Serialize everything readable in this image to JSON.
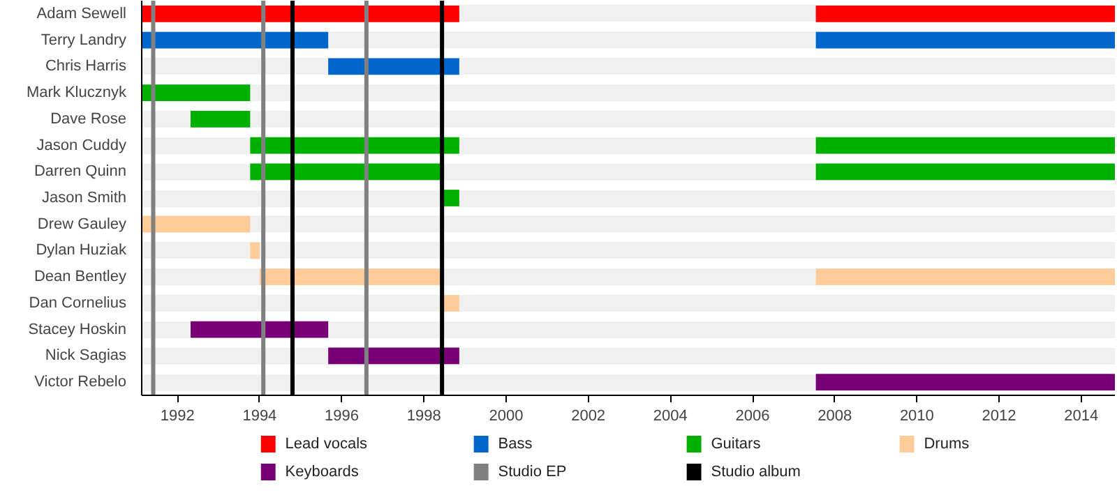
{
  "chart_data": {
    "type": "bar",
    "orientation": "horizontal",
    "grid": "y",
    "legend": "bottom",
    "categories": [
      "Adam Sewell",
      "Terry Landry",
      "Chris Harris",
      "Mark Klucznyk",
      "Dave Rose",
      "Jason Cuddy",
      "Darren Quinn",
      "Jason Smith",
      "Drew Gauley",
      "Dylan Huziak",
      "Dean Bentley",
      "Dan Cornelius",
      "Stacey Hoskin",
      "Nick Sagias",
      "Victor Rebelo"
    ],
    "xlim": [
      1991.13,
      2014.82
    ],
    "xticks": [
      1992,
      1994,
      1996,
      1998,
      2000,
      2002,
      2004,
      2006,
      2008,
      2010,
      2012,
      2014
    ],
    "series": [
      {
        "name": "Lead vocals",
        "color": "#ff0000",
        "base": [
          1991.13,
          null,
          null,
          null,
          null,
          null,
          null,
          null,
          null,
          null,
          null,
          null,
          null,
          null,
          null
        ],
        "values": [
          7.73,
          null,
          null,
          null,
          null,
          null,
          null,
          null,
          null,
          null,
          null,
          null,
          null,
          null,
          null
        ]
      },
      {
        "name": "Bass",
        "color": "#0066cc",
        "base": [
          null,
          1991.13,
          1995.67,
          null,
          null,
          null,
          null,
          null,
          null,
          null,
          null,
          null,
          null,
          null,
          null
        ],
        "values": [
          null,
          4.54,
          3.19,
          null,
          null,
          null,
          null,
          null,
          null,
          null,
          null,
          null,
          null,
          null,
          null
        ]
      },
      {
        "name": "Guitars",
        "color": "#00b000",
        "base": [
          null,
          null,
          null,
          1991.13,
          1992.32,
          1993.77,
          1993.77,
          1998.47,
          null,
          null,
          null,
          null,
          null,
          null,
          null
        ],
        "values": [
          null,
          null,
          null,
          2.64,
          1.45,
          5.09,
          4.7,
          0.39,
          null,
          null,
          null,
          null,
          null,
          null,
          null
        ]
      },
      {
        "name": "Drums",
        "color": "#ffcc99",
        "base": [
          null,
          null,
          null,
          null,
          null,
          null,
          null,
          null,
          1991.13,
          1993.77,
          1994.0,
          1998.47,
          null,
          null,
          null
        ],
        "values": [
          null,
          null,
          null,
          null,
          null,
          null,
          null,
          null,
          2.64,
          0.23,
          4.47,
          0.39,
          null,
          null,
          null
        ]
      },
      {
        "name": "Keyboards",
        "color": "#770077",
        "base": [
          null,
          null,
          null,
          null,
          null,
          null,
          null,
          null,
          null,
          null,
          null,
          null,
          1992.32,
          1995.67,
          null
        ],
        "values": [
          null,
          null,
          null,
          null,
          null,
          null,
          null,
          null,
          null,
          null,
          null,
          null,
          3.35,
          3.19,
          null
        ]
      },
      {
        "colors": [
          "#ff0000",
          "#0066cc",
          null,
          null,
          null,
          "#00b000",
          "#00b000",
          null,
          null,
          null,
          "#ffcc99",
          null,
          null,
          null,
          "#770077"
        ],
        "base": [
          2007.54,
          2007.54,
          null,
          null,
          null,
          2007.54,
          2007.54,
          null,
          null,
          null,
          2007.54,
          null,
          null,
          null,
          2007.54
        ],
        "values": [
          7.28,
          7.28,
          null,
          null,
          null,
          7.28,
          7.28,
          null,
          null,
          null,
          7.28,
          null,
          null,
          null,
          7.28
        ]
      }
    ],
    "ref_lines": [
      {
        "axis": "x",
        "value": 1991.41,
        "label": "Studio EP",
        "color": "#808080"
      },
      {
        "axis": "x",
        "value": 1994.09,
        "color": "#808080"
      },
      {
        "axis": "x",
        "value": 1994.8,
        "label": "Studio album",
        "color": "#000000"
      },
      {
        "axis": "x",
        "value": 1996.6,
        "color": "#808080"
      },
      {
        "axis": "x",
        "value": 1998.44,
        "color": "#000000"
      }
    ]
  }
}
